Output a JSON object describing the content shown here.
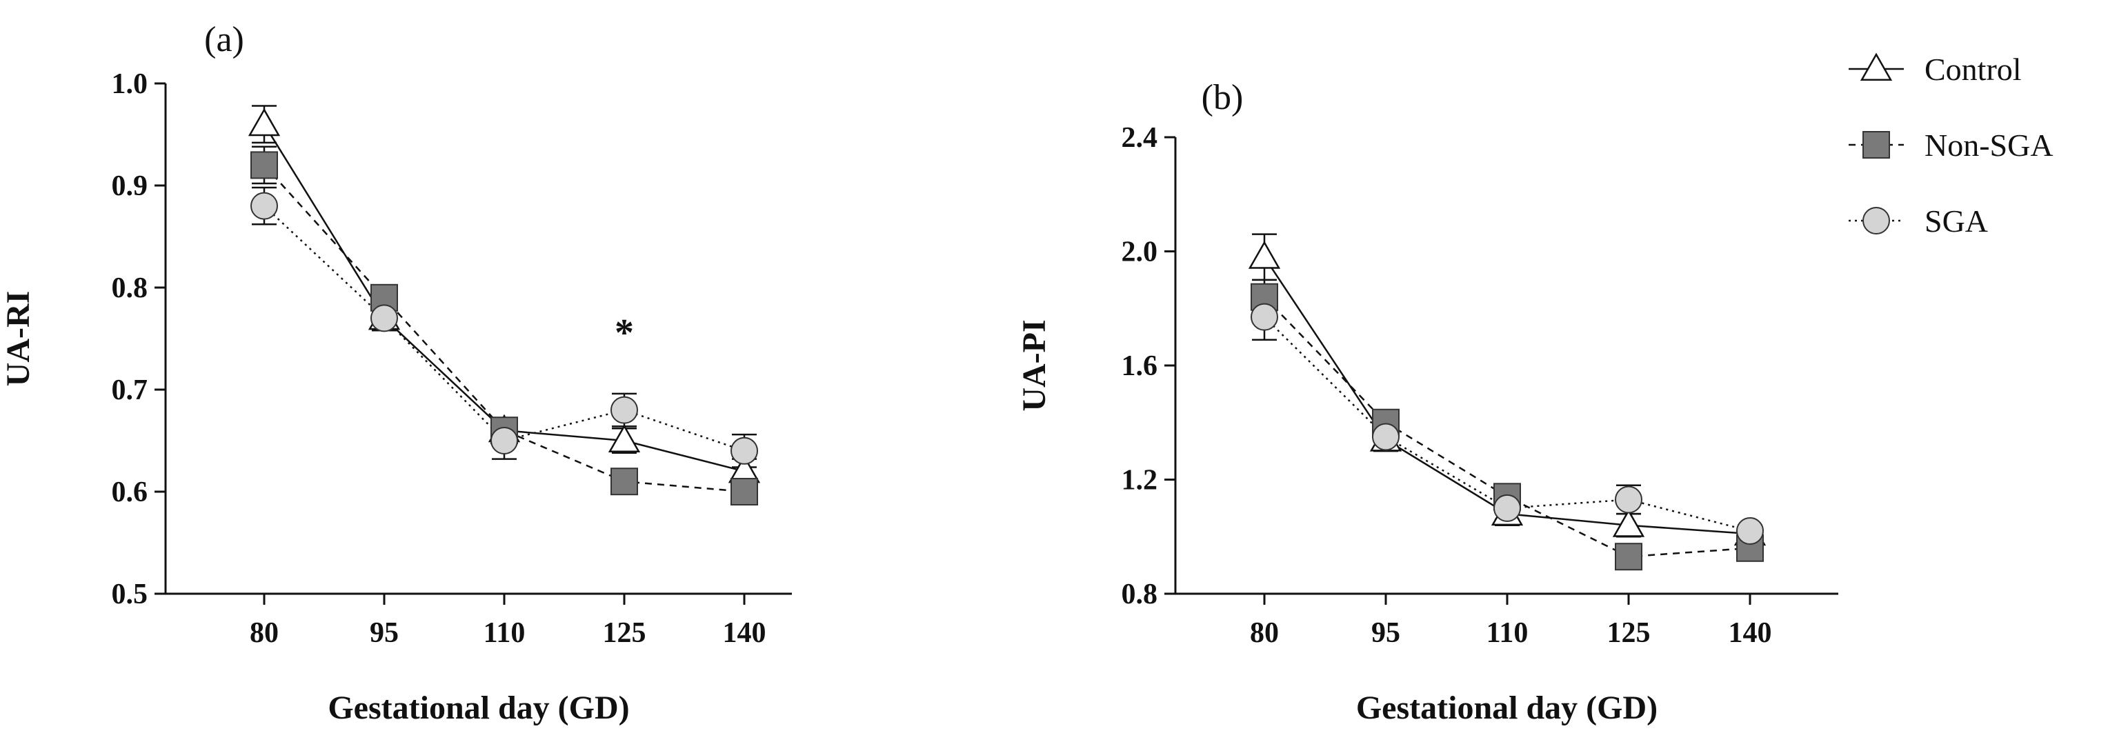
{
  "legend": [
    {
      "name": "Control",
      "marker": "triangle",
      "line": "solid",
      "fill": "#ffffff"
    },
    {
      "name": "Non-SGA",
      "marker": "square",
      "line": "dashed",
      "fill": "#7a7a7a"
    },
    {
      "name": "SGA",
      "marker": "circle",
      "line": "dotted",
      "fill": "#d4d4d4"
    }
  ],
  "chart_data": [
    {
      "type": "line",
      "panel": "(a)",
      "title": "",
      "xlabel": "Gestational day (GD)",
      "ylabel": "UA-RI",
      "categories": [
        "80",
        "95",
        "110",
        "125",
        "140"
      ],
      "yticks": [
        "0.5",
        "0.6",
        "0.7",
        "0.8",
        "0.9",
        "1.0"
      ],
      "ylim": [
        0.5,
        1.0
      ],
      "grid": false,
      "series": [
        {
          "name": "Control",
          "values": [
            0.96,
            0.77,
            0.66,
            0.65,
            0.62
          ],
          "errors": [
            0.018,
            0.012,
            0.012,
            0.012,
            0.012
          ]
        },
        {
          "name": "Non-SGA",
          "values": [
            0.92,
            0.79,
            0.66,
            0.61,
            0.6
          ],
          "errors": [
            0.018,
            0.012,
            0.012,
            0.012,
            0.012
          ]
        },
        {
          "name": "SGA",
          "values": [
            0.88,
            0.77,
            0.65,
            0.68,
            0.64
          ],
          "errors": [
            0.018,
            0.012,
            0.018,
            0.016,
            0.016
          ]
        }
      ],
      "annotations": [
        {
          "text": "*",
          "x": "125"
        }
      ]
    },
    {
      "type": "line",
      "panel": "(b)",
      "title": "",
      "xlabel": "Gestational day (GD)",
      "ylabel": "UA-PI",
      "categories": [
        "80",
        "95",
        "110",
        "125",
        "140"
      ],
      "yticks": [
        "0.8",
        "1.2",
        "1.6",
        "2.0",
        "2.4"
      ],
      "ylim": [
        0.8,
        2.4
      ],
      "grid": false,
      "series": [
        {
          "name": "Control",
          "values": [
            1.98,
            1.34,
            1.08,
            1.04,
            1.01
          ],
          "errors": [
            0.08,
            0.04,
            0.04,
            0.04,
            0.02
          ]
        },
        {
          "name": "Non-SGA",
          "values": [
            1.84,
            1.4,
            1.14,
            0.93,
            0.96
          ],
          "errors": [
            0.06,
            0.04,
            0.04,
            0.03,
            0.02
          ]
        },
        {
          "name": "SGA",
          "values": [
            1.77,
            1.35,
            1.1,
            1.13,
            1.02
          ],
          "errors": [
            0.08,
            0.04,
            0.04,
            0.05,
            0.02
          ]
        }
      ],
      "annotations": []
    }
  ]
}
